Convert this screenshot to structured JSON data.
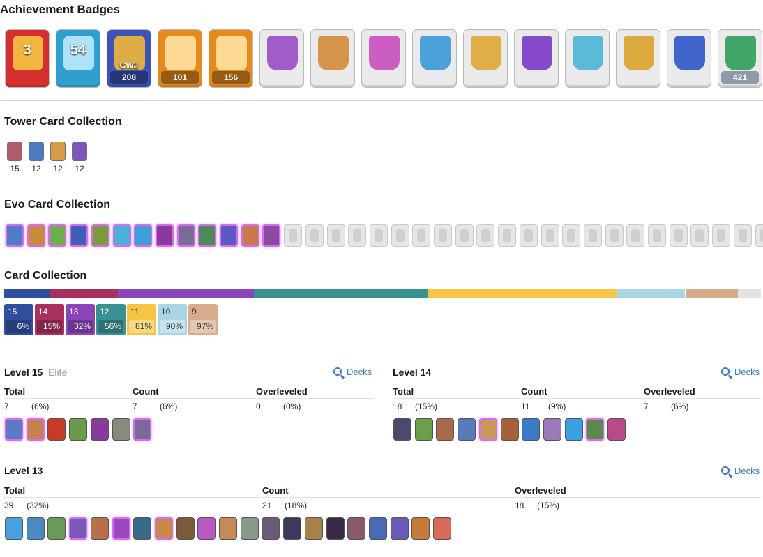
{
  "achievements": {
    "title": "Achievement Badges",
    "badges": [
      {
        "name": "years-played-badge",
        "label": "",
        "number": "3",
        "bg": "#d62f2f",
        "accent": "#f5c542"
      },
      {
        "name": "level-badge",
        "label": "",
        "number": "54",
        "bg": "#2f9fd0",
        "accent": "#bde9ff"
      },
      {
        "name": "clan-wars-badge",
        "label": "208",
        "number": "CW2",
        "bg": "#3d53b5",
        "accent": "#f0b73a"
      },
      {
        "name": "crl-wins-badge",
        "label": "101",
        "number": "",
        "bg": "#e58a1f",
        "accent": "#ffe1a0"
      },
      {
        "name": "crl-wins-2-badge",
        "label": "156",
        "number": "",
        "bg": "#e58a1f",
        "accent": "#ffe1a0"
      },
      {
        "name": "season-badge-1",
        "label": "",
        "number": "",
        "bg": "#eaeaea",
        "accent": "#9a4cc7"
      },
      {
        "name": "season-badge-2",
        "label": "",
        "number": "",
        "bg": "#eaeaea",
        "accent": "#d48b3a"
      },
      {
        "name": "season-badge-3",
        "label": "",
        "number": "",
        "bg": "#eaeaea",
        "accent": "#c94fbf"
      },
      {
        "name": "season-badge-4",
        "label": "",
        "number": "",
        "bg": "#eaeaea",
        "accent": "#3a9ad8"
      },
      {
        "name": "season-badge-5",
        "label": "",
        "number": "",
        "bg": "#eaeaea",
        "accent": "#e0a635"
      },
      {
        "name": "season-badge-6",
        "label": "",
        "number": "",
        "bg": "#eaeaea",
        "accent": "#7b37c7"
      },
      {
        "name": "season-badge-7",
        "label": "",
        "number": "",
        "bg": "#eaeaea",
        "accent": "#4bb5d6"
      },
      {
        "name": "season-badge-8",
        "label": "",
        "number": "",
        "bg": "#eaeaea",
        "accent": "#d9a22b"
      },
      {
        "name": "season-badge-9",
        "label": "",
        "number": "",
        "bg": "#eaeaea",
        "accent": "#2d58c9"
      },
      {
        "name": "collection-badge",
        "label": "421",
        "number": "",
        "bg": "#eaeaea",
        "accent": "#2f9c5b"
      }
    ]
  },
  "tower": {
    "title": "Tower Card Collection",
    "cards": [
      {
        "level": "15",
        "color": "#b25a6d"
      },
      {
        "level": "12",
        "color": "#4d79c2"
      },
      {
        "level": "12",
        "color": "#d99a45"
      },
      {
        "level": "12",
        "color": "#7d55b8"
      }
    ]
  },
  "evo": {
    "title": "Evo Card Collection",
    "unlocked": 13,
    "total": 36,
    "colors": [
      "#4d7ec7",
      "#c98a3a",
      "#6bb04a",
      "#3d5fb5",
      "#7a9b3a",
      "#4bb0d8",
      "#3aa0d6",
      "#8a3a9a",
      "#7a6a9a",
      "#4b8a5a",
      "#5a5ac0",
      "#c97a4a",
      "#8a4aa0"
    ]
  },
  "collection": {
    "title": "Card Collection",
    "bar": [
      {
        "level": "15",
        "share": 6,
        "color": "#2f4f9e"
      },
      {
        "level": "14",
        "share": 9,
        "color": "#a8305f"
      },
      {
        "level": "13",
        "share": 18,
        "color": "#8a45b8"
      },
      {
        "level": "12",
        "share": 23,
        "color": "#3a9192"
      },
      {
        "level": "11",
        "share": 25,
        "color": "#f6c543"
      },
      {
        "level": "10",
        "share": 9,
        "color": "#a9d5e4"
      },
      {
        "level": "9",
        "share": 7,
        "color": "#d7ab8c"
      },
      {
        "level": "",
        "share": 3,
        "color": "#e2e2e2"
      }
    ],
    "tiles": [
      {
        "level": "15",
        "pct": "6%",
        "color": "#2f4f9e",
        "dark": false
      },
      {
        "level": "14",
        "pct": "15%",
        "color": "#a8305f",
        "dark": false
      },
      {
        "level": "13",
        "pct": "32%",
        "color": "#8a45b8",
        "dark": false
      },
      {
        "level": "12",
        "pct": "56%",
        "color": "#3a9192",
        "dark": false
      },
      {
        "level": "11",
        "pct": "81%",
        "color": "#f6c543",
        "dark": true
      },
      {
        "level": "10",
        "pct": "90%",
        "color": "#a9d5e4",
        "dark": true
      },
      {
        "level": "9",
        "pct": "97%",
        "color": "#d7ab8c",
        "dark": true
      }
    ]
  },
  "levels": {
    "decks_label": "Decks",
    "col_total": "Total",
    "col_count": "Count",
    "col_overleveled": "Overleveled",
    "l15": {
      "title": "Level 15",
      "subtitle": "Elite",
      "total": "7",
      "total_pct": "(6%)",
      "count": "7",
      "count_pct": "(6%)",
      "over": "0",
      "over_pct": "(0%)",
      "cards": [
        {
          "color": "#5a7ac7",
          "evo": true
        },
        {
          "color": "#c4834a",
          "evo": true
        },
        {
          "color": "#c73a2a",
          "evo": false
        },
        {
          "color": "#6a9a4a",
          "evo": false
        },
        {
          "color": "#8a3a9a",
          "evo": false
        },
        {
          "color": "#8a8a7a",
          "evo": false
        },
        {
          "color": "#7a6a9a",
          "evo": true
        }
      ]
    },
    "l14": {
      "title": "Level 14",
      "total": "18",
      "total_pct": "(15%)",
      "count": "11",
      "count_pct": "(9%)",
      "over": "7",
      "over_pct": "(6%)",
      "cards": [
        {
          "color": "#4a4a6a",
          "evo": false
        },
        {
          "color": "#6aa04a",
          "evo": false
        },
        {
          "color": "#a86a4a",
          "evo": false
        },
        {
          "color": "#5a7ab8",
          "evo": false
        },
        {
          "color": "#c79a5a",
          "evo": true
        },
        {
          "color": "#a8603a",
          "evo": false
        },
        {
          "color": "#3a7ac7",
          "evo": false
        },
        {
          "color": "#9a7ab8",
          "evo": false
        },
        {
          "color": "#3aa0e0",
          "evo": false
        },
        {
          "color": "#5a8a4a",
          "evo": true
        },
        {
          "color": "#b84a8a",
          "evo": false
        }
      ]
    },
    "l13": {
      "title": "Level 13",
      "total": "39",
      "total_pct": "(32%)",
      "count": "21",
      "count_pct": "(18%)",
      "over": "18",
      "over_pct": "(15%)",
      "cards": [
        {
          "color": "#4aa0e0",
          "evo": false
        },
        {
          "color": "#4a8ac0",
          "evo": false
        },
        {
          "color": "#6a9a5a",
          "evo": false
        },
        {
          "color": "#7a5ab8",
          "evo": true
        },
        {
          "color": "#b8704a",
          "evo": false
        },
        {
          "color": "#9a4ac0",
          "evo": true
        },
        {
          "color": "#3a6a8a",
          "evo": false
        },
        {
          "color": "#c78a4a",
          "evo": true
        },
        {
          "color": "#7a5a3a",
          "evo": false
        },
        {
          "color": "#b85ac0",
          "evo": false
        },
        {
          "color": "#c78a5a",
          "evo": false
        },
        {
          "color": "#8a9a8a",
          "evo": false
        },
        {
          "color": "#6a5a7a",
          "evo": false
        },
        {
          "color": "#3a3a5a",
          "evo": false
        },
        {
          "color": "#a8804a",
          "evo": false
        },
        {
          "color": "#3a2a4a",
          "evo": false
        },
        {
          "color": "#8a5a6a",
          "evo": false
        },
        {
          "color": "#4a6ab8",
          "evo": false
        },
        {
          "color": "#6a5ab8",
          "evo": false
        },
        {
          "color": "#c77a3a",
          "evo": false
        },
        {
          "color": "#d86a5a",
          "evo": false
        }
      ]
    }
  }
}
